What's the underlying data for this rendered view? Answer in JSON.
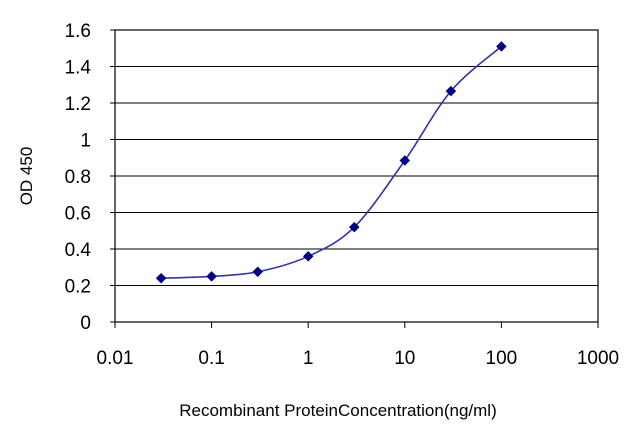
{
  "chart_data": {
    "type": "line",
    "title": "",
    "xlabel": "Recombinant ProteinConcentration(ng/ml)",
    "ylabel": "OD 450",
    "x_scale": "log",
    "xlim": [
      0.01,
      1000
    ],
    "ylim": [
      0,
      1.6
    ],
    "x_ticks": [
      0.01,
      0.1,
      1,
      10,
      100,
      1000
    ],
    "x_tick_labels": [
      "0.01",
      "0.1",
      "1",
      "10",
      "100",
      "1000"
    ],
    "y_ticks": [
      0,
      0.2,
      0.4,
      0.6,
      0.8,
      1,
      1.2,
      1.4,
      1.6
    ],
    "y_tick_labels": [
      "0",
      "0.2",
      "0.4",
      "0.6",
      "0.8",
      "1",
      "1.2",
      "1.4",
      "1.6"
    ],
    "grid": "horizontal",
    "legend": "none",
    "series": [
      {
        "x": [
          0.03,
          0.1,
          0.3,
          1,
          3,
          10,
          30,
          100
        ],
        "y": [
          0.24,
          0.25,
          0.275,
          0.36,
          0.52,
          0.885,
          1.265,
          1.51
        ],
        "color": "#3333aa",
        "marker": "diamond",
        "marker_color": "#000080"
      }
    ]
  }
}
